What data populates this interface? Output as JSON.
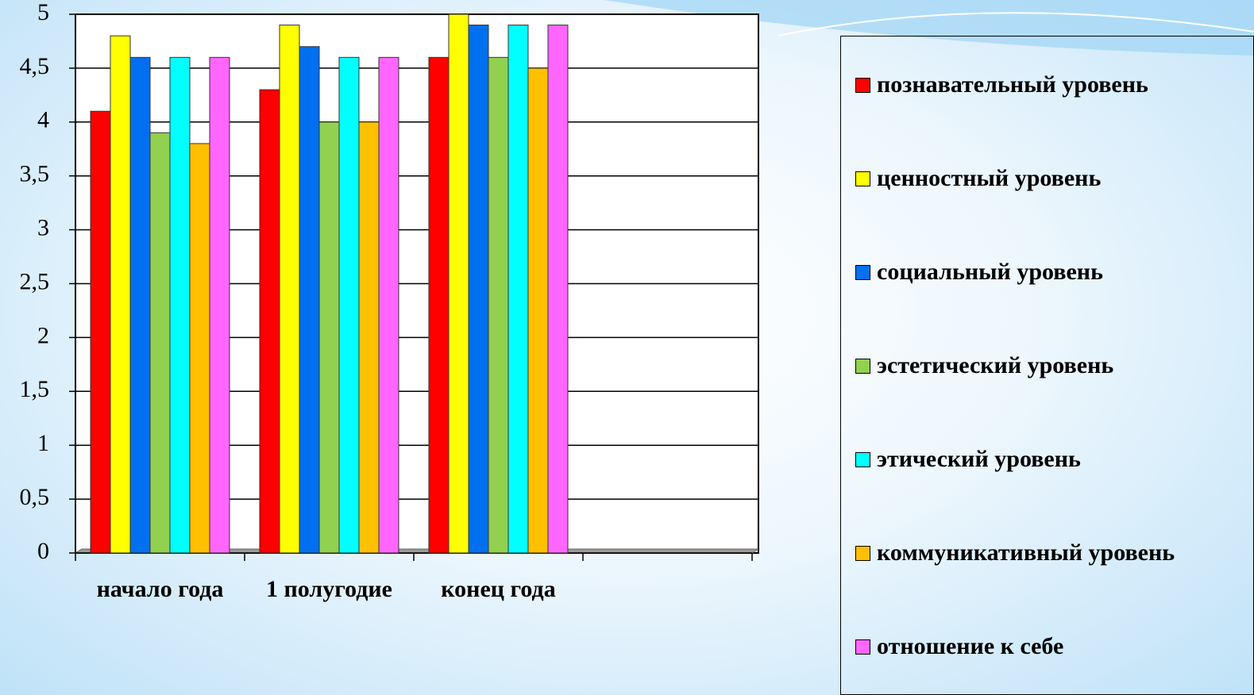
{
  "chart_data": {
    "type": "bar",
    "categories": [
      "начало года",
      "1 полугодие",
      "конец года",
      null
    ],
    "series": [
      {
        "name": "познавательный уровень",
        "color": "#ff0000",
        "values": [
          4.1,
          4.3,
          4.6,
          null
        ]
      },
      {
        "name": "ценностный уровень",
        "color": "#ffff00",
        "values": [
          4.8,
          4.9,
          5,
          null
        ]
      },
      {
        "name": "социальный уровень",
        "color": "#0070f0",
        "values": [
          4.6,
          4.7,
          4.9,
          null
        ]
      },
      {
        "name": "эстетический уровень",
        "color": "#92d050",
        "values": [
          3.9,
          4,
          4.6,
          null
        ]
      },
      {
        "name": "этический уровень",
        "color": "#00ffff",
        "values": [
          4.6,
          4.6,
          4.9,
          null
        ]
      },
      {
        "name": "коммуникативный уровень",
        "color": "#ffc000",
        "values": [
          3.8,
          4,
          4.5,
          null
        ]
      },
      {
        "name": "отношение к себе",
        "color": "#ff66ff",
        "values": [
          4.6,
          4.6,
          4.9,
          null
        ]
      }
    ],
    "ylim": [
      0,
      5
    ],
    "yticks": [
      0,
      {
        "value": 0.5,
        "label": "0,5"
      },
      1,
      {
        "value": 1.5,
        "label": "1,5"
      },
      2,
      {
        "value": 2.5,
        "label": "2,5"
      },
      3,
      {
        "value": 3.5,
        "label": "3,5"
      },
      4,
      {
        "value": 4.5,
        "label": "4,5"
      },
      5
    ],
    "grid": true
  }
}
